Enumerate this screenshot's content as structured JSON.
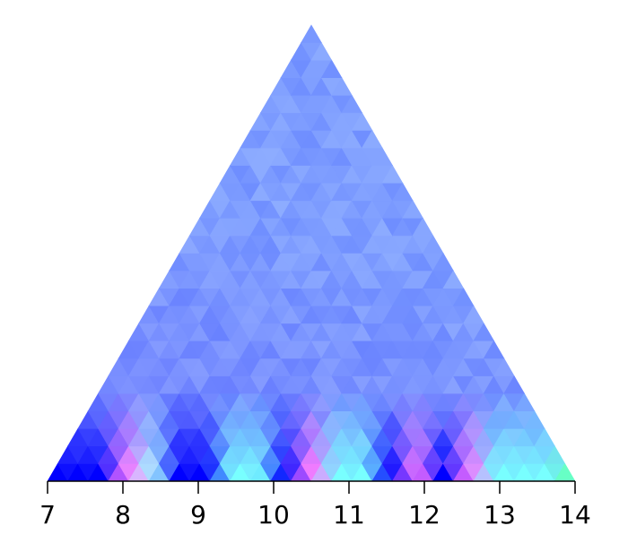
{
  "chart_data": {
    "type": "heatmap",
    "description_type": "triangular pyramid heatmap (diamond-cell triangle plot)",
    "xlim": [
      7,
      14
    ],
    "x_ticks": [
      7,
      8,
      9,
      10,
      11,
      12,
      13,
      14
    ],
    "tick_labels": [
      "7",
      "8",
      "9",
      "10",
      "11",
      "12",
      "13",
      "14"
    ],
    "rows": 26,
    "palette": {
      "deep_blue": "#0000ff",
      "blue": "#4d4dff",
      "periwinkle": "#6f7dff",
      "light_periwinkle": "#8aa3ff",
      "lavender": "#b7b7ff",
      "cyan": "#78ffff",
      "light_cyan": "#aaffff",
      "magenta": "#ff78ff",
      "purple": "#9a5cff",
      "green": "#5cffa0"
    },
    "base_row_colors": [
      "#0000ff",
      "#0000ff",
      "#0000ff",
      "#ff78ff",
      "#aaffff",
      "#0000ff",
      "#0000ff",
      "#78ffff",
      "#78ffff",
      "#0000ff",
      "#ff78ff",
      "#78ffff",
      "#78ffff",
      "#0000ff",
      "#ff78ff",
      "#0000ff",
      "#ff78ff",
      "#78ffff",
      "#78ffff",
      "#78ffff",
      "#5cffa0"
    ],
    "title": "",
    "xlabel": "",
    "ylabel": ""
  }
}
